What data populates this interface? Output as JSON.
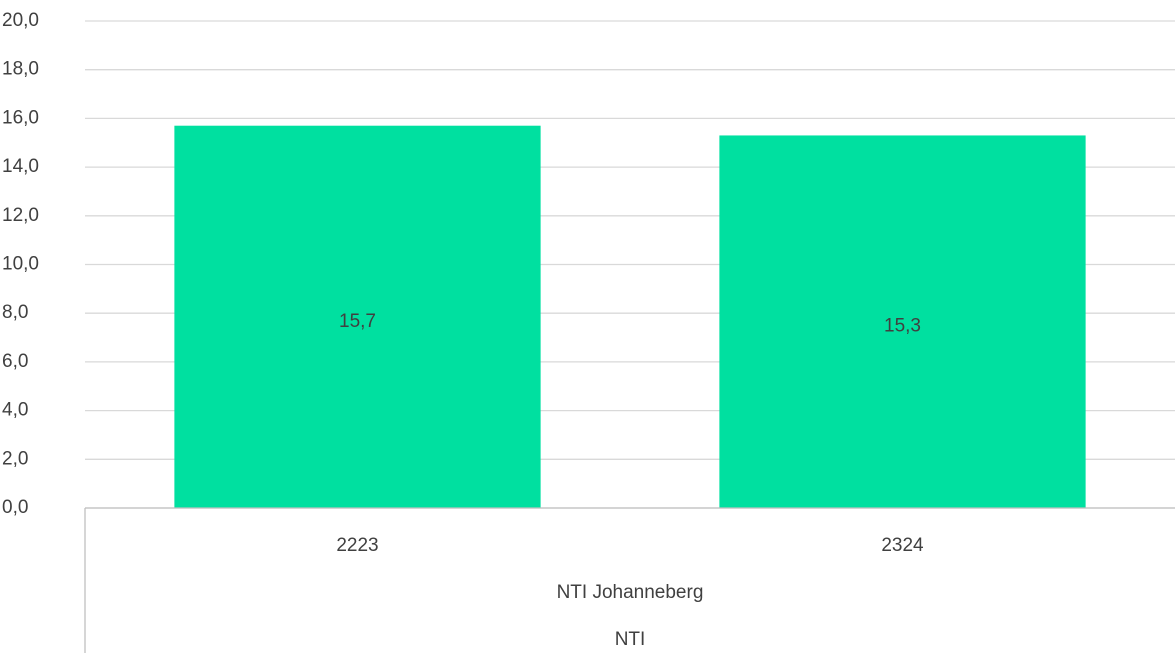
{
  "chart_data": {
    "type": "bar",
    "categories": [
      "2223",
      "2324"
    ],
    "groups": [
      "NTI Johanneberg",
      "NTI"
    ],
    "values": [
      15.7,
      15.3
    ],
    "value_labels": [
      "15,7",
      "15,3"
    ],
    "color": "#00e0a0",
    "ylim": [
      0,
      20
    ],
    "yticks": [
      {
        "value": 0,
        "label": "0,0"
      },
      {
        "value": 2,
        "label": "2,0"
      },
      {
        "value": 4,
        "label": "4,0"
      },
      {
        "value": 6,
        "label": "6,0"
      },
      {
        "value": 8,
        "label": "8,0"
      },
      {
        "value": 10,
        "label": "10,0"
      },
      {
        "value": 12,
        "label": "12,0"
      },
      {
        "value": 14,
        "label": "14,0"
      },
      {
        "value": 16,
        "label": "16,0"
      },
      {
        "value": 18,
        "label": "18,0"
      },
      {
        "value": 20,
        "label": "20,0"
      }
    ],
    "grid": true
  }
}
